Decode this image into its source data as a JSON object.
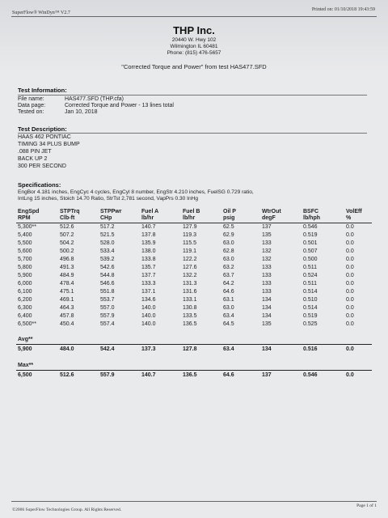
{
  "header": {
    "app": "SuperFlow® WinDyn™ V2.7",
    "printed": "Printed on: 01/10/2018 19:43:59"
  },
  "company": {
    "name": "THP Inc.",
    "address1": "20440 W. Hwy 102",
    "address2": "Wilmington IL 60481",
    "phone": "Phone: (815) 476-5657"
  },
  "subtitle": "\"Corrected Torque and Power\" from test HAS477.SFD",
  "test_info": {
    "heading": "Test Information:",
    "rows": [
      {
        "label": "File name:",
        "value": "HAS477.SFD  (THP.cfa)"
      },
      {
        "label": "Data page:",
        "value": "Corrected Torque and Power - 13 lines total"
      },
      {
        "label": "Tested on:",
        "value": "Jan 10, 2018"
      }
    ]
  },
  "test_desc": {
    "heading": "Test Description:",
    "lines": [
      "HAAS 462 PONTIAC",
      "TIMING 34 PLUS BUMP",
      ".088 PIN JET",
      "BACK UP 2",
      "300 PER SECOND"
    ]
  },
  "specs": {
    "heading": "Specifications:",
    "line1": "EngBor 4.181 inches,  EngCyc 4 cycles,  EngCyl 8 number,  EngStr 4.210 inches,  FuelSG 0.729 ratio,",
    "line2": "IntLng 15 inches,  Stoich 14.70 Ratio,  StrTst 2,781 second,  VapPrs 0.30 InHg"
  },
  "table": {
    "headers1": [
      "EngSpd",
      "STPTrq",
      "STPPwr",
      "Fuel A",
      "Fuel B",
      "Oil P",
      "WtrOut",
      "BSFC",
      "VolEff"
    ],
    "headers2": [
      "RPM",
      "Clb-ft",
      "CHp",
      "lb/hr",
      "lb/hr",
      "psig",
      "degF",
      "lb/hph",
      "%"
    ],
    "rows": [
      [
        "5,300**",
        "512.6",
        "517.2",
        "140.7",
        "127.9",
        "62.5",
        "137",
        "0.546",
        "0.0"
      ],
      [
        "5,400",
        "507.2",
        "521.5",
        "137.8",
        "119.3",
        "62.9",
        "135",
        "0.519",
        "0.0"
      ],
      [
        "5,500",
        "504.2",
        "528.0",
        "135.9",
        "115.5",
        "63.0",
        "133",
        "0.501",
        "0.0"
      ],
      [
        "5,600",
        "500.2",
        "533.4",
        "138.0",
        "119.1",
        "62.8",
        "132",
        "0.507",
        "0.0"
      ],
      [
        "5,700",
        "496.8",
        "539.2",
        "133.8",
        "122.2",
        "63.0",
        "132",
        "0.500",
        "0.0"
      ],
      [
        "5,800",
        "491.3",
        "542.6",
        "135.7",
        "127.6",
        "63.2",
        "133",
        "0.511",
        "0.0"
      ],
      [
        "5,900",
        "484.9",
        "544.8",
        "137.7",
        "132.2",
        "63.7",
        "133",
        "0.524",
        "0.0"
      ],
      [
        "6,000",
        "478.4",
        "546.6",
        "133.3",
        "131.3",
        "64.2",
        "133",
        "0.511",
        "0.0"
      ],
      [
        "6,100",
        "475.1",
        "551.8",
        "137.1",
        "131.6",
        "64.6",
        "133",
        "0.514",
        "0.0"
      ],
      [
        "6,200",
        "469.1",
        "553.7",
        "134.6",
        "133.1",
        "63.1",
        "134",
        "0.510",
        "0.0"
      ],
      [
        "6,300",
        "464.3",
        "557.0",
        "140.0",
        "130.8",
        "63.0",
        "134",
        "0.514",
        "0.0"
      ],
      [
        "6,400",
        "457.8",
        "557.9",
        "140.0",
        "133.5",
        "63.4",
        "134",
        "0.519",
        "0.0"
      ],
      [
        "6,500**",
        "450.4",
        "557.4",
        "140.0",
        "136.5",
        "64.5",
        "135",
        "0.525",
        "0.0"
      ]
    ],
    "avg_label": "Avg**",
    "avg": [
      "5,900",
      "484.0",
      "542.4",
      "137.3",
      "127.8",
      "63.4",
      "134",
      "0.516",
      "0.0"
    ],
    "max_label": "Max**",
    "max": [
      "6,500",
      "512.6",
      "557.9",
      "140.7",
      "136.5",
      "64.6",
      "137",
      "0.546",
      "0.0"
    ]
  },
  "footer": {
    "copyright": "©2006 SuperFlow Technologies Group.  All Rights Reserved.",
    "page": "Page 1 of 1"
  }
}
